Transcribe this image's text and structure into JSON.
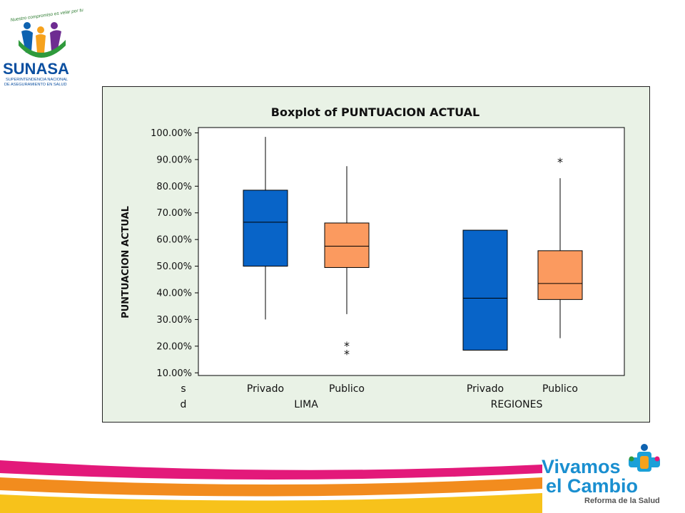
{
  "header": {
    "logo": {
      "tagline": "Nuestro compromiso es velar por tu Salud",
      "name": "SUNASA",
      "subtitle_line1": "SUPERINTENDENCIA NACIONAL",
      "subtitle_line2": "DE ASEGURAMIENTO EN SALUD"
    }
  },
  "footer": {
    "logo": {
      "line1": "Vivamos",
      "line2": "el Cambio",
      "line3": "Reforma de la Salud"
    },
    "colors": {
      "magenta": "#e3197a",
      "orange": "#f28c1e",
      "yellow": "#f7c21b"
    }
  },
  "chart_data": {
    "type": "boxplot",
    "title": "Boxplot of PUNTUACION ACTUAL",
    "ylabel": "PUNTUACION ACTUAL",
    "ylim": [
      0.09,
      1.02
    ],
    "yticks": [
      "100.00%",
      "90.00%",
      "80.00%",
      "70.00%",
      "60.00%",
      "50.00%",
      "40.00%",
      "30.00%",
      "20.00%",
      "10.00%"
    ],
    "ytick_values": [
      1.0,
      0.9,
      0.8,
      0.7,
      0.6,
      0.5,
      0.4,
      0.3,
      0.2,
      0.1
    ],
    "row_labels": [
      "s",
      "d"
    ],
    "groups": [
      {
        "name": "LIMA",
        "categories": [
          "Privado",
          "Publico"
        ]
      },
      {
        "name": "REGIONES",
        "categories": [
          "Privado",
          "Publico"
        ]
      }
    ],
    "colors": {
      "Privado": "#0864c8",
      "Publico": "#fb9a5f"
    },
    "boxes": [
      {
        "group": "LIMA",
        "category": "Privado",
        "min": 0.3,
        "q1": 0.5,
        "median": 0.665,
        "q3": 0.785,
        "max": 0.985,
        "outliers": []
      },
      {
        "group": "LIMA",
        "category": "Publico",
        "min": 0.32,
        "q1": 0.495,
        "median": 0.575,
        "q3": 0.662,
        "max": 0.875,
        "outliers": [
          0.21,
          0.18
        ]
      },
      {
        "group": "REGIONES",
        "category": "Privado",
        "min": 0.185,
        "q1": 0.185,
        "median": 0.38,
        "q3": 0.635,
        "max": 0.635,
        "outliers": []
      },
      {
        "group": "REGIONES",
        "category": "Publico",
        "min": 0.23,
        "q1": 0.375,
        "median": 0.435,
        "q3": 0.558,
        "max": 0.83,
        "outliers": [
          0.9
        ]
      }
    ]
  }
}
